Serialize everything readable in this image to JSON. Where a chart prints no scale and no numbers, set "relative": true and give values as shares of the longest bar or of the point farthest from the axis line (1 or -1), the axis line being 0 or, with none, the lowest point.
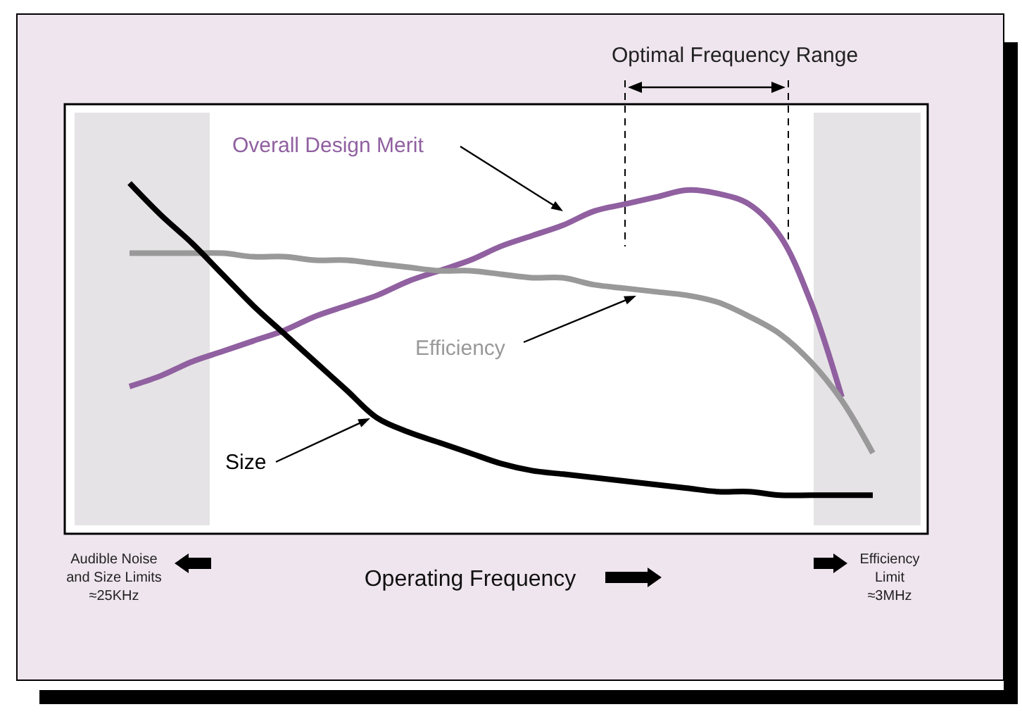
{
  "chart_data": {
    "type": "line",
    "relative": true,
    "xlabel": "Operating Frequency",
    "legend": false,
    "grid": false,
    "categories": [
      null,
      null,
      null,
      null,
      null,
      null,
      null,
      null,
      null,
      null,
      null,
      null,
      null,
      null,
      null,
      null,
      null,
      null,
      null,
      null,
      null,
      null,
      null,
      null,
      null
    ],
    "series": [
      {
        "name": "Overall Design Merit",
        "color": "#9060a0",
        "values": [
          0.42,
          0.45,
          0.49,
          0.52,
          0.55,
          0.58,
          0.62,
          0.65,
          0.68,
          0.72,
          0.75,
          0.78,
          0.82,
          0.85,
          0.88,
          0.92,
          0.94,
          0.96,
          0.98,
          0.97,
          0.94,
          0.85,
          0.66,
          0.39,
          null
        ]
      },
      {
        "name": "Efficiency",
        "color": "#999999",
        "values": [
          0.8,
          0.8,
          0.8,
          0.8,
          0.79,
          0.79,
          0.78,
          0.78,
          0.77,
          0.76,
          0.75,
          0.75,
          0.74,
          0.73,
          0.73,
          0.71,
          0.7,
          0.69,
          0.68,
          0.66,
          0.62,
          0.57,
          0.49,
          0.38,
          0.23
        ]
      },
      {
        "name": "Size",
        "color": "#000000",
        "values": [
          1.0,
          0.91,
          0.83,
          0.74,
          0.65,
          0.57,
          0.49,
          0.41,
          0.33,
          0.29,
          0.26,
          0.23,
          0.2,
          0.18,
          0.17,
          0.16,
          0.15,
          0.14,
          0.13,
          0.12,
          0.12,
          0.11,
          0.11,
          0.11,
          0.11
        ]
      }
    ],
    "annotations": [
      "Optimal Frequency Range",
      "Audible Noise\nand Size Limits\n≈25KHz",
      "Efficiency\nLimit\n≈3MHz"
    ]
  }
}
